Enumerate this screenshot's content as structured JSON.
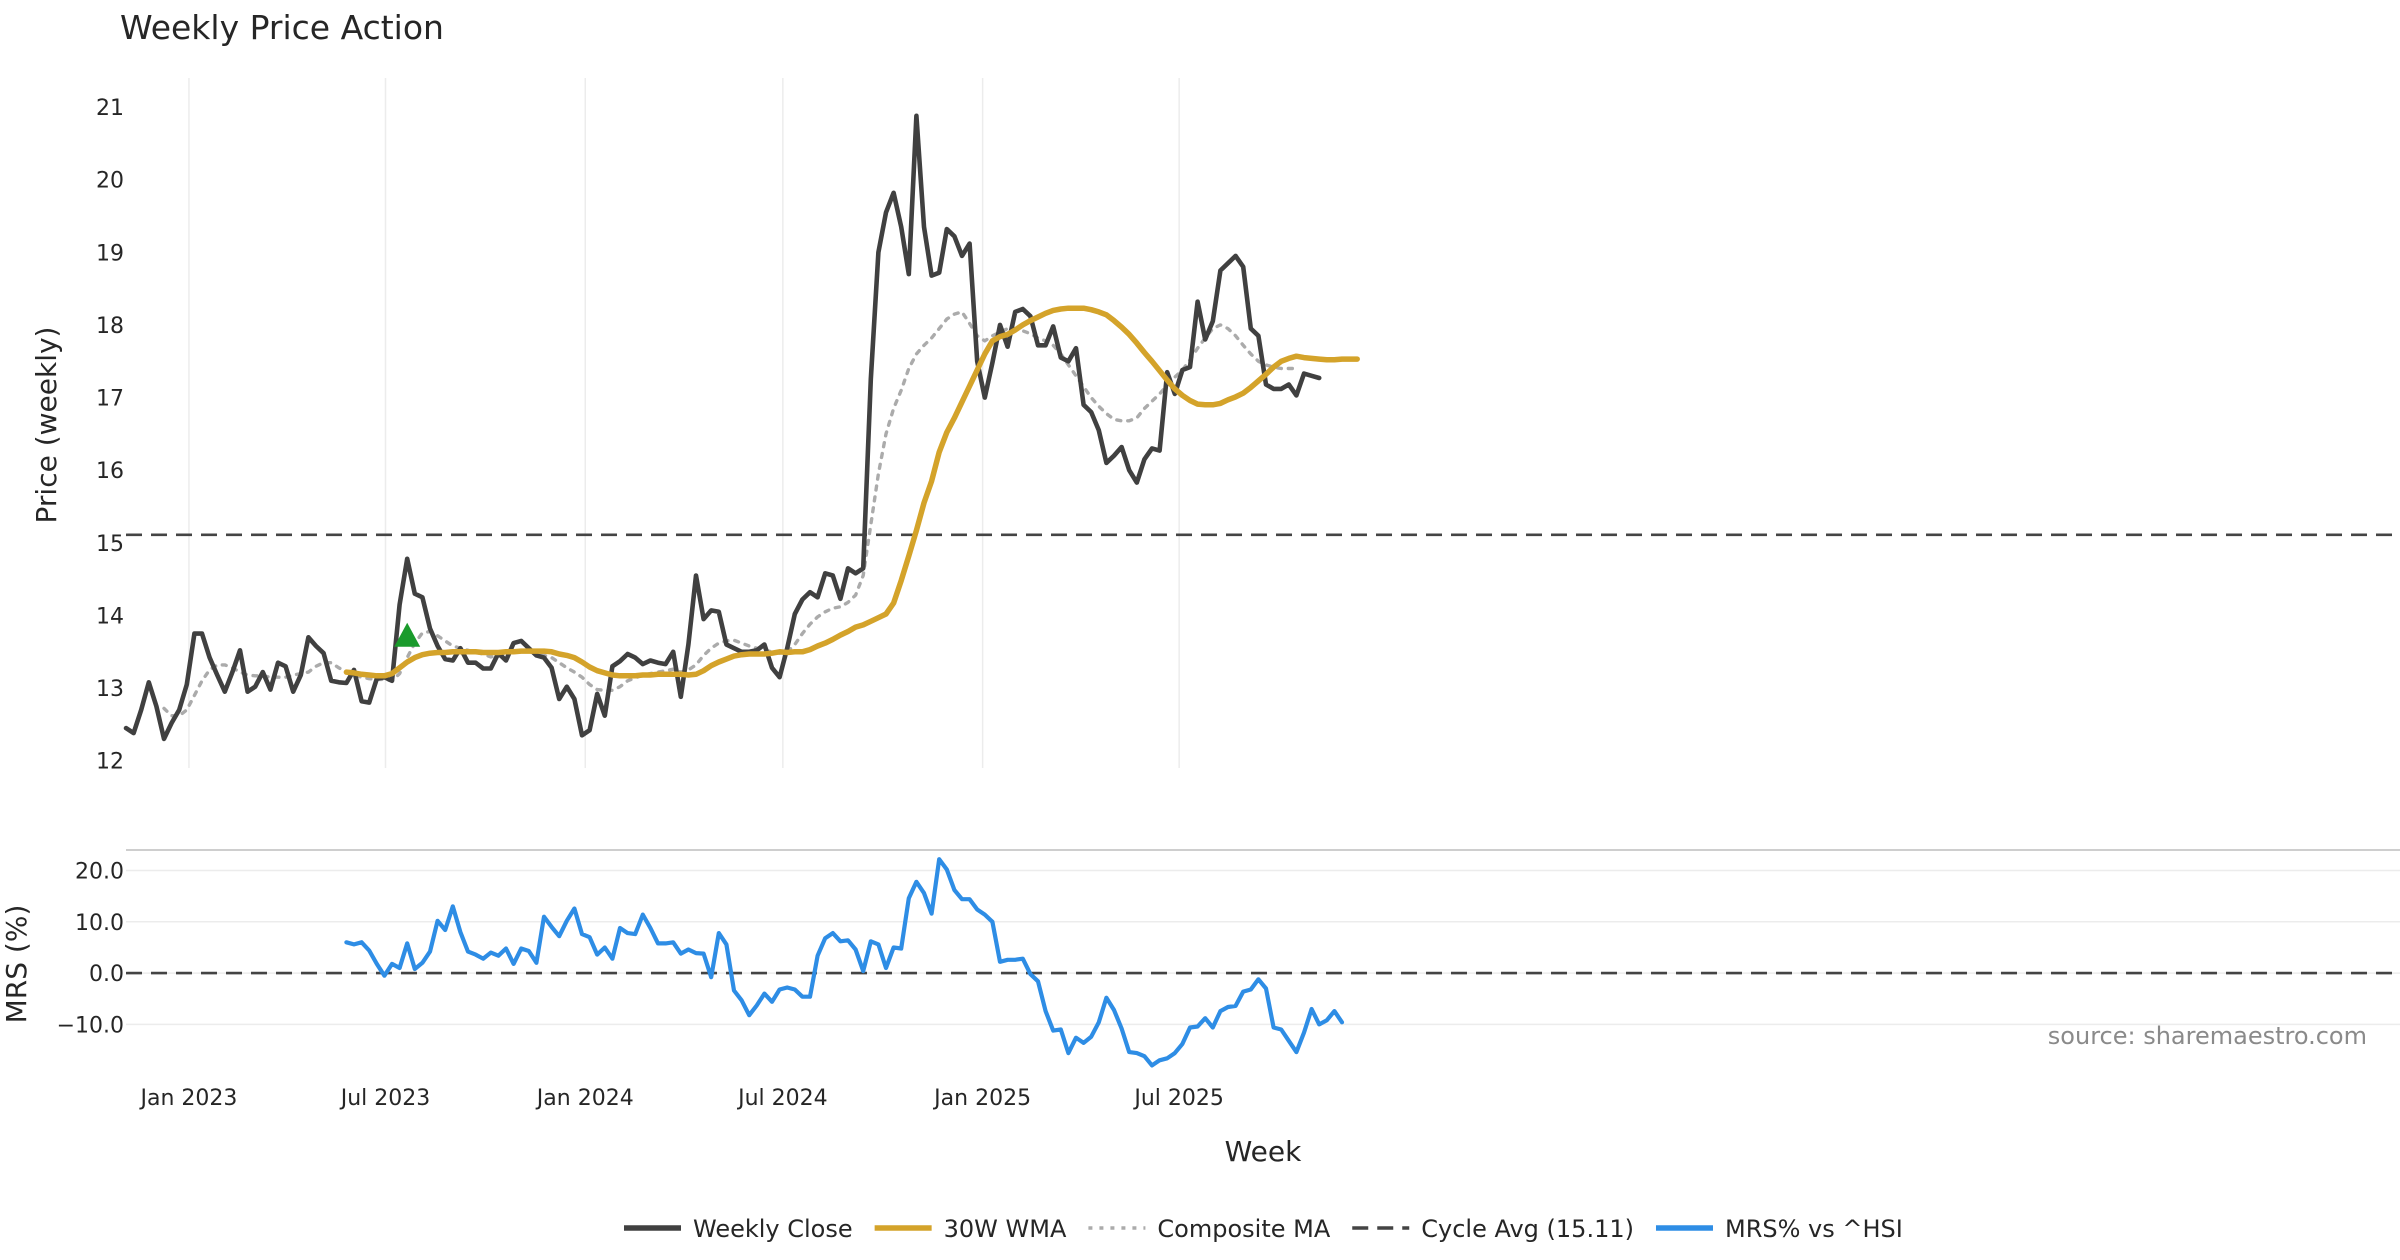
{
  "chart_data": [
    {
      "panel": "price",
      "type": "line",
      "title": "Weekly Price Action",
      "ylabel": "Price (weekly)",
      "ylim": [
        11.9,
        21.4
      ],
      "yticks": [
        12,
        13,
        14,
        15,
        16,
        17,
        18,
        19,
        20,
        21
      ],
      "x_start": "2022-11-04",
      "x_step_days": 7,
      "grid": "vertical",
      "series": [
        {
          "name": "Weekly Close",
          "color": "#404040",
          "style": "solid",
          "values": [
            12.45,
            12.38,
            12.7,
            13.08,
            12.75,
            12.3,
            12.52,
            12.7,
            13.05,
            13.75,
            13.75,
            13.42,
            13.18,
            12.95,
            13.22,
            13.52,
            12.95,
            13.02,
            13.22,
            12.98,
            13.35,
            13.3,
            12.95,
            13.18,
            13.7,
            13.58,
            13.48,
            13.1,
            13.08,
            13.07,
            13.25,
            12.82,
            12.8,
            13.13,
            13.15,
            13.1,
            14.15,
            14.78,
            14.3,
            14.25,
            13.82,
            13.58,
            13.4,
            13.38,
            13.55,
            13.35,
            13.35,
            13.27,
            13.27,
            13.48,
            13.38,
            13.62,
            13.65,
            13.55,
            13.45,
            13.42,
            13.28,
            12.85,
            13.02,
            12.85,
            12.35,
            12.42,
            12.92,
            12.62,
            13.3,
            13.37,
            13.47,
            13.42,
            13.33,
            13.38,
            13.35,
            13.33,
            13.5,
            12.88,
            13.6,
            14.55,
            13.95,
            14.07,
            14.05,
            13.6,
            13.55,
            13.5,
            13.5,
            13.52,
            13.6,
            13.28,
            13.15,
            13.55,
            14.02,
            14.22,
            14.32,
            14.25,
            14.58,
            14.55,
            14.23,
            14.65,
            14.58,
            14.65,
            17.25,
            19.0,
            19.55,
            19.82,
            19.35,
            18.7,
            20.88,
            19.35,
            18.68,
            18.72,
            19.32,
            19.22,
            18.95,
            19.12,
            17.5,
            17.0,
            17.48,
            18.0,
            17.7,
            18.18,
            18.22,
            18.12,
            17.72,
            17.72,
            17.98,
            17.55,
            17.5,
            17.68,
            16.9,
            16.8,
            16.55,
            16.1,
            16.2,
            16.32,
            16.0,
            15.83,
            16.15,
            16.3,
            16.27,
            17.35,
            17.05,
            17.38,
            17.42,
            18.32,
            17.8,
            18.05,
            18.75,
            18.85,
            18.95,
            18.8,
            17.95,
            17.85,
            17.18,
            17.12,
            17.12,
            17.18,
            17.03,
            17.33,
            17.3,
            17.27
          ]
        },
        {
          "name": "30W WMA",
          "color": "#d4a32a",
          "style": "solid",
          "start_index": 29,
          "values": [
            13.22,
            13.21,
            13.19,
            13.18,
            13.17,
            13.17,
            13.2,
            13.28,
            13.36,
            13.42,
            13.46,
            13.48,
            13.49,
            13.49,
            13.5,
            13.5,
            13.5,
            13.5,
            13.49,
            13.49,
            13.49,
            13.5,
            13.5,
            13.51,
            13.51,
            13.51,
            13.51,
            13.5,
            13.47,
            13.45,
            13.42,
            13.36,
            13.29,
            13.24,
            13.21,
            13.18,
            13.17,
            13.17,
            13.17,
            13.18,
            13.18,
            13.19,
            13.19,
            13.19,
            13.19,
            13.18,
            13.19,
            13.24,
            13.31,
            13.36,
            13.4,
            13.44,
            13.46,
            13.47,
            13.47,
            13.47,
            13.48,
            13.5,
            13.49,
            13.5,
            13.5,
            13.53,
            13.58,
            13.62,
            13.67,
            13.73,
            13.78,
            13.84,
            13.87,
            13.92,
            13.97,
            14.02,
            14.17,
            14.48,
            14.82,
            15.17,
            15.55,
            15.85,
            16.25,
            16.52,
            16.72,
            16.94,
            17.16,
            17.38,
            17.6,
            17.78,
            17.84,
            17.87,
            17.93,
            18.0,
            18.06,
            18.11,
            18.16,
            18.2,
            18.22,
            18.23,
            18.23,
            18.23,
            18.21,
            18.18,
            18.14,
            18.06,
            17.97,
            17.87,
            17.75,
            17.62,
            17.5,
            17.37,
            17.24,
            17.12,
            17.03,
            16.96,
            16.91,
            16.9,
            16.9,
            16.92,
            16.97,
            17.01,
            17.06,
            17.14,
            17.23,
            17.32,
            17.42,
            17.5,
            17.54,
            17.57,
            17.55,
            17.54,
            17.53,
            17.52,
            17.52,
            17.53,
            17.53,
            17.53
          ]
        },
        {
          "name": "Composite MA",
          "color": "#ababab",
          "style": "dotted",
          "start_index": 5,
          "values": [
            12.72,
            12.62,
            12.62,
            12.7,
            12.9,
            13.1,
            13.25,
            13.32,
            13.32,
            13.28,
            13.22,
            13.18,
            13.17,
            13.17,
            13.15,
            13.15,
            13.15,
            13.18,
            13.2,
            13.22,
            13.3,
            13.35,
            13.35,
            13.28,
            13.22,
            13.18,
            13.15,
            13.13,
            13.12,
            13.12,
            13.1,
            13.2,
            13.42,
            13.62,
            13.76,
            13.78,
            13.72,
            13.65,
            13.58,
            13.55,
            13.52,
            13.49,
            13.47,
            13.43,
            13.45,
            13.47,
            13.5,
            13.52,
            13.5,
            13.48,
            13.45,
            13.42,
            13.35,
            13.28,
            13.22,
            13.15,
            13.05,
            12.98,
            12.97,
            12.97,
            13.02,
            13.1,
            13.14,
            13.18,
            13.2,
            13.22,
            13.24,
            13.26,
            13.22,
            13.25,
            13.32,
            13.45,
            13.55,
            13.62,
            13.65,
            13.66,
            13.62,
            13.58,
            13.55,
            13.52,
            13.5,
            13.48,
            13.5,
            13.6,
            13.75,
            13.88,
            13.98,
            14.05,
            14.1,
            14.12,
            14.18,
            14.28,
            14.55,
            15.25,
            15.95,
            16.5,
            16.85,
            17.1,
            17.4,
            17.6,
            17.72,
            17.82,
            17.95,
            18.08,
            18.15,
            18.18,
            18.02,
            17.85,
            17.78,
            17.85,
            17.9,
            17.95,
            17.95,
            17.92,
            17.88,
            17.82,
            17.78,
            17.72,
            17.6,
            17.45,
            17.3,
            17.15,
            17.0,
            16.88,
            16.78,
            16.7,
            16.68,
            16.68,
            16.72,
            16.85,
            16.95,
            17.05,
            17.17,
            17.28,
            17.38,
            17.52,
            17.68,
            17.82,
            17.95,
            18.0,
            17.95,
            17.85,
            17.72,
            17.6,
            17.5,
            17.45,
            17.42,
            17.4,
            17.4,
            17.4
          ]
        },
        {
          "name": "Cycle Avg (15.11)",
          "color": "#444444",
          "style": "dashed",
          "constant": 15.11
        }
      ],
      "markers": [
        {
          "type": "triangle-up",
          "color": "#1a9b2c",
          "index": 37,
          "value": 13.72
        }
      ]
    },
    {
      "panel": "mrs",
      "type": "line",
      "xlabel": "Week",
      "ylabel": "MRS (%)",
      "ylim": [
        -18.5,
        24
      ],
      "yticks": [
        20,
        10,
        0,
        -10
      ],
      "ytick_labels": [
        "20.0",
        "10.0",
        "0.0",
        "−10.0"
      ],
      "x_start": "2022-11-04",
      "x_step_days": 7,
      "xticks": [
        "Jan 2023",
        "Jul 2023",
        "Jan 2024",
        "Jul 2024",
        "Jan 2025",
        "Jul 2025"
      ],
      "xtick_dates": [
        "2023-01-01",
        "2023-07-01",
        "2024-01-01",
        "2024-07-01",
        "2025-01-01",
        "2025-07-01"
      ],
      "series": [
        {
          "name": "MRS% vs ^HSI",
          "color": "#2e8de5",
          "style": "solid",
          "start_index": 29,
          "values": [
            6.0,
            5.6,
            6.0,
            4.4,
            1.8,
            -0.5,
            1.8,
            1.0,
            5.8,
            0.8,
            2.0,
            4.2,
            10.2,
            8.4,
            13.0,
            8.0,
            4.2,
            3.6,
            2.8,
            4.0,
            3.4,
            4.8,
            1.8,
            4.8,
            4.3,
            2.0,
            11.0,
            9.0,
            7.2,
            10.2,
            12.6,
            7.6,
            7.0,
            3.6,
            5.0,
            2.8,
            8.8,
            7.8,
            7.6,
            11.4,
            8.8,
            5.8,
            5.8,
            6.0,
            3.8,
            4.6,
            3.9,
            3.8,
            -0.8,
            7.8,
            5.6,
            -3.4,
            -5.3,
            -8.2,
            -6.3,
            -4.0,
            -5.6,
            -3.2,
            -2.8,
            -3.2,
            -4.6,
            -4.6,
            3.4,
            6.8,
            7.8,
            6.2,
            6.4,
            4.6,
            0.4,
            6.2,
            5.6,
            1.0,
            5.0,
            4.8,
            14.6,
            17.8,
            15.6,
            11.6,
            22.2,
            20.2,
            16.2,
            14.4,
            14.4,
            12.4,
            11.4,
            10.0,
            2.2,
            2.6,
            2.6,
            2.8,
            -0.2,
            -1.6,
            -7.4,
            -11.2,
            -11.0,
            -15.6,
            -12.6,
            -13.6,
            -12.4,
            -9.6,
            -4.8,
            -7.2,
            -10.8,
            -15.4,
            -15.6,
            -16.2,
            -18.0,
            -17.0,
            -16.6,
            -15.6,
            -13.8,
            -10.6,
            -10.4,
            -8.8,
            -10.6,
            -7.4,
            -6.6,
            -6.4,
            -3.6,
            -3.2,
            -1.2,
            -3.0,
            -10.6,
            -11.0,
            -13.2,
            -15.4,
            -11.6,
            -7.0,
            -10.0,
            -9.2,
            -7.4,
            -9.6
          ]
        },
        {
          "name": "zero line",
          "color": "#444444",
          "style": "dashed",
          "constant": 0
        }
      ]
    }
  ],
  "legend": {
    "placement": "bottom-center",
    "items": [
      {
        "label": "Weekly Close",
        "color": "#404040",
        "style": "solid"
      },
      {
        "label": "30W WMA",
        "color": "#d4a32a",
        "style": "solid"
      },
      {
        "label": "Composite MA",
        "color": "#ababab",
        "style": "dotted"
      },
      {
        "label": "Cycle Avg (15.11)",
        "color": "#444444",
        "style": "dashed"
      },
      {
        "label": "MRS% vs ^HSI",
        "color": "#2e8de5",
        "style": "solid"
      }
    ]
  },
  "watermark": "source: sharemaestro.com"
}
